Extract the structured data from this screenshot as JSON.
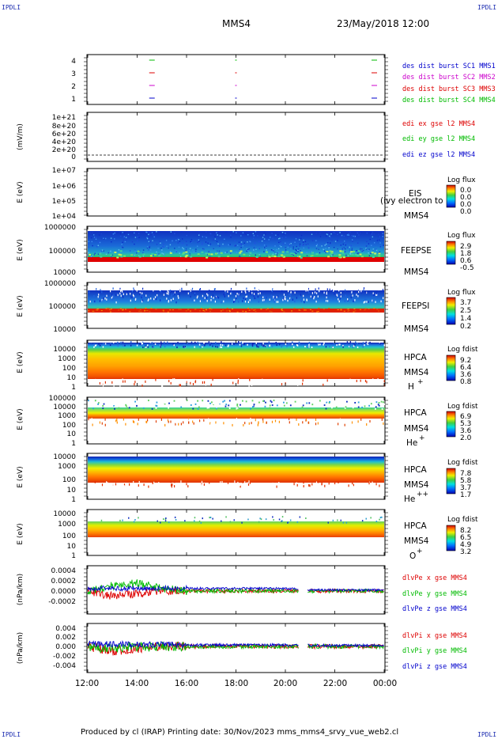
{
  "corner_label": "IPDLI",
  "header": {
    "spacecraft": "MMS4",
    "datetime": "23/May/2018 12:00"
  },
  "footer": {
    "text": "Produced by cl (IRAP)   Printing date: 30/Nov/2023   mms_mms4_srvy_vue_web2.cl"
  },
  "x_axis": {
    "ticks": [
      "12:00",
      "14:00",
      "16:00",
      "18:00",
      "20:00",
      "22:00",
      "00:00"
    ]
  },
  "colors": {
    "c_blue": "#0000cc",
    "c_magenta": "#cc00cc",
    "c_red": "#dd0000",
    "c_green": "#00bb00"
  },
  "panels": {
    "p1": {
      "ticks": [
        "4",
        "3",
        "2",
        "1"
      ],
      "legend": [
        "des dist burst SC1 MMS1",
        "des dist burst SC2 MMS2",
        "des dist burst SC3 MMS3",
        "des dist burst SC4 MMS4"
      ]
    },
    "p2": {
      "ylabel": "(mV/m)",
      "ticks": [
        "1e+21",
        "8e+20",
        "6e+20",
        "4e+20",
        "2e+20",
        "0"
      ],
      "legend": [
        "edi ex gse l2 MMS4",
        "edi ey gse l2 MMS4",
        "edi ez gse l2 MMS4"
      ]
    },
    "p3": {
      "ylabel": "E (eV)",
      "ticks": [
        "1e+07",
        "1e+06",
        "1e+05",
        "1e+04"
      ],
      "inst": "EIS",
      "overlay": "(ivy electron to",
      "sc": "MMS4",
      "cb_title": "Log flux",
      "cb_ticks": [
        "0.0",
        "0.0",
        "0.0",
        "0.0"
      ]
    },
    "p4": {
      "ylabel": "E (eV)",
      "ticks": [
        "1000000",
        "100000",
        "10000"
      ],
      "inst": "FEEPSE",
      "sc": "MMS4",
      "cb_title": "Log flux",
      "cb_ticks": [
        "2.9",
        "1.8",
        "0.6",
        "-0.5"
      ]
    },
    "p5": {
      "ylabel": "E (eV)",
      "ticks": [
        "1000000",
        "100000",
        "10000"
      ],
      "inst": "FEEPSI",
      "sc": "MMS4",
      "cb_title": "Log flux",
      "cb_ticks": [
        "3.7",
        "2.5",
        "1.4",
        "0.2"
      ]
    },
    "p6": {
      "ylabel": "E (eV)",
      "ticks": [
        "10000",
        "1000",
        "100",
        "10",
        "1"
      ],
      "inst": "HPCA",
      "sc": "MMS4",
      "species": "H",
      "charge": "+",
      "cb_title": "Log fdist",
      "cb_ticks": [
        "9.2",
        "6.4",
        "3.6",
        "0.8"
      ]
    },
    "p7": {
      "ylabel": "E (eV)",
      "ticks": [
        "100000",
        "10000",
        "1000",
        "100",
        "10",
        "1"
      ],
      "inst": "HPCA",
      "sc": "MMS4",
      "species": "He",
      "charge": "+",
      "cb_title": "Log fdist",
      "cb_ticks": [
        "6.9",
        "5.3",
        "3.6",
        "2.0"
      ]
    },
    "p8": {
      "ylabel": "E (eV)",
      "ticks": [
        "10000",
        "1000",
        "100",
        "10",
        "1"
      ],
      "inst": "HPCA",
      "sc": "MMS4",
      "species": "He",
      "charge": "++",
      "cb_title": "Log fdist",
      "cb_ticks": [
        "7.8",
        "5.8",
        "3.7",
        "1.7"
      ]
    },
    "p9": {
      "ylabel": "E (eV)",
      "ticks": [
        "10000",
        "1000",
        "100",
        "10",
        "1"
      ],
      "inst": "HPCA",
      "sc": "MMS4",
      "species": "O",
      "charge": "+",
      "cb_title": "Log fdist",
      "cb_ticks": [
        "8.2",
        "6.5",
        "4.9",
        "3.2"
      ]
    },
    "p10": {
      "ylabel": "(nPa/km)",
      "ticks": [
        "0.0004",
        "0.0002",
        "0.0000",
        "-0.0002"
      ],
      "legend": [
        "dlvPe x gse MMS4",
        "dlvPe y gse MMS4",
        "dlvPe z gse MMS4"
      ]
    },
    "p11": {
      "ylabel": "(nPa/km)",
      "ticks": [
        "0.004",
        "0.002",
        "0.000",
        "-0.002",
        "-0.004"
      ],
      "legend": [
        "dlvPi x gse MMS4",
        "dlvPi y gse MMS4",
        "dlvPi z gse MMS4"
      ]
    }
  },
  "chart_data": [
    {
      "type": "scatter",
      "panel": "p1",
      "xlim": [
        "12:00",
        "00:00"
      ],
      "ylim": [
        0.5,
        4.5
      ],
      "series": [
        {
          "name": "des dist burst SC1 MMS1",
          "y": 4,
          "x_hours": [
            14.6,
            18.0,
            23.6
          ]
        },
        {
          "name": "des dist burst SC2 MMS2",
          "y": 3,
          "x_hours": [
            14.6,
            18.0,
            23.6
          ]
        },
        {
          "name": "des dist burst SC3 MMS3",
          "y": 2,
          "x_hours": [
            14.6,
            18.0,
            23.6
          ]
        },
        {
          "name": "des dist burst SC4 MMS4",
          "y": 1,
          "x_hours": [
            14.6,
            18.0,
            23.6
          ]
        }
      ]
    },
    {
      "type": "line",
      "panel": "p2",
      "ylim": [
        0,
        1e+21
      ],
      "series": [
        {
          "name": "edi ex gse l2 MMS4",
          "x_hours": [
            12.0,
            24.0
          ],
          "values": [
            0,
            0
          ]
        }
      ]
    },
    {
      "type": "heatmap",
      "panel": "p4",
      "ylim": [
        10000,
        1000000
      ],
      "log_y": true,
      "band_eV": [
        35000,
        1000000
      ],
      "color_range": [
        -0.5,
        2.9
      ]
    },
    {
      "type": "heatmap",
      "panel": "p5",
      "ylim": [
        10000,
        1000000
      ],
      "log_y": true,
      "band_eV": [
        55000,
        500000
      ],
      "color_range": [
        0.2,
        3.7
      ]
    },
    {
      "type": "heatmap",
      "panel": "p6",
      "ylim": [
        1,
        20000
      ],
      "log_y": true,
      "band_eV": [
        5,
        20000
      ],
      "color_range": [
        0.8,
        9.2
      ]
    },
    {
      "type": "heatmap",
      "panel": "p7",
      "ylim": [
        1,
        100000
      ],
      "log_y": true,
      "band_eV": [
        300,
        8000
      ],
      "color_range": [
        2.0,
        6.9
      ]
    },
    {
      "type": "heatmap",
      "panel": "p8",
      "ylim": [
        1,
        20000
      ],
      "log_y": true,
      "band_eV": [
        50,
        20000
      ],
      "color_range": [
        1.7,
        7.8
      ]
    },
    {
      "type": "heatmap",
      "panel": "p9",
      "ylim": [
        1,
        20000
      ],
      "log_y": true,
      "band_eV": [
        200,
        8000
      ],
      "color_range": [
        3.2,
        8.2
      ]
    },
    {
      "type": "line",
      "panel": "p10",
      "ylim": [
        -0.0003,
        0.0005
      ],
      "gap_hours": [
        20.55,
        20.9
      ],
      "series": [
        {
          "name": "dlvPe x gse MMS4",
          "x_hours": [
            12,
            13,
            14,
            15,
            16,
            17,
            18,
            19,
            20,
            21,
            22,
            23,
            24
          ],
          "values": [
            0,
            -0.0001,
            -5e-05,
            0,
            0,
            0,
            0,
            0,
            0,
            0,
            0,
            0,
            0
          ]
        },
        {
          "name": "dlvPe y gse MMS4",
          "x_hours": [
            12,
            13,
            14,
            15,
            16,
            17,
            18,
            19,
            20,
            21,
            22,
            23,
            24
          ],
          "values": [
            0,
            0.0001,
            0.00015,
            5e-05,
            0,
            0,
            0,
            0,
            0,
            0,
            0,
            0,
            0
          ]
        },
        {
          "name": "dlvPe z gse MMS4",
          "x_hours": [
            12,
            13,
            14,
            15,
            16,
            17,
            18,
            19,
            20,
            21,
            22,
            23,
            24
          ],
          "values": [
            5e-05,
            5e-05,
            5e-05,
            5e-05,
            5e-05,
            5e-05,
            5e-05,
            5e-05,
            5e-05,
            2e-05,
            2e-05,
            2e-05,
            2e-05
          ]
        }
      ]
    },
    {
      "type": "line",
      "panel": "p11",
      "ylim": [
        -0.005,
        0.005
      ],
      "gap_hours": [
        20.55,
        20.9
      ],
      "series": [
        {
          "name": "dlvPi x gse MMS4",
          "x_hours": [
            12,
            13,
            14,
            15,
            16,
            17,
            18,
            19,
            20,
            21,
            22,
            23,
            24
          ],
          "values": [
            0,
            -0.001,
            -0.0005,
            0,
            0,
            0,
            0,
            0,
            0,
            0,
            0,
            0,
            0
          ]
        },
        {
          "name": "dlvPi y gse MMS4",
          "x_hours": [
            12,
            13,
            14,
            15,
            16,
            17,
            18,
            19,
            20,
            21,
            22,
            23,
            24
          ],
          "values": [
            0,
            -0.0005,
            0,
            0,
            0,
            0,
            0,
            0,
            0,
            0,
            0,
            0,
            0
          ]
        },
        {
          "name": "dlvPi z gse MMS4",
          "x_hours": [
            12,
            13,
            14,
            15,
            16,
            17,
            18,
            19,
            20,
            21,
            22,
            23,
            24
          ],
          "values": [
            0.0005,
            0.0005,
            0.0004,
            0.0004,
            0.0003,
            0.0003,
            0.0003,
            0.0003,
            0.0003,
            0.0002,
            0.0002,
            0.0002,
            0.0002
          ]
        }
      ]
    }
  ]
}
